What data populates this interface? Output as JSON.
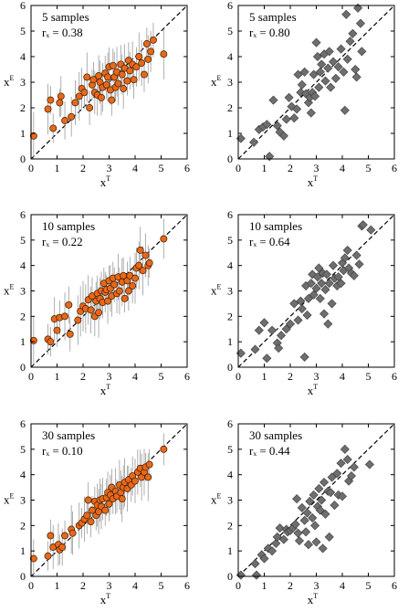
{
  "chart_data": [
    {
      "type": "scatter",
      "marker": "circle",
      "marker_color": "#e8681a",
      "error_bars": true,
      "title": "",
      "annotation_line1": "5 samples",
      "annotation_line2": "rₓ = 0.38",
      "xlabel": "x",
      "xlabel_sup": "T",
      "ylabel": "x",
      "ylabel_sup": "E",
      "xlim": [
        0,
        6
      ],
      "ylim": [
        0,
        6
      ],
      "xticks": [
        "0",
        "1",
        "2",
        "3",
        "4",
        "5",
        "6"
      ],
      "yticks": [
        "0",
        "1",
        "2",
        "3",
        "4",
        "5",
        "6"
      ],
      "reference_line": "y = x (dashed)",
      "points": [
        [
          0.1,
          0.9
        ],
        [
          0.65,
          1.95
        ],
        [
          0.75,
          2.3
        ],
        [
          0.85,
          1.2
        ],
        [
          1.1,
          2.2
        ],
        [
          1.15,
          2.45
        ],
        [
          1.3,
          1.5
        ],
        [
          1.55,
          1.65
        ],
        [
          1.7,
          2.2
        ],
        [
          1.85,
          2.45
        ],
        [
          1.95,
          2.75
        ],
        [
          2.05,
          2.6
        ],
        [
          2.15,
          3.2
        ],
        [
          2.25,
          2.0
        ],
        [
          2.35,
          2.9
        ],
        [
          2.4,
          3.1
        ],
        [
          2.45,
          2.6
        ],
        [
          2.55,
          2.5
        ],
        [
          2.6,
          3.25
        ],
        [
          2.65,
          3.0
        ],
        [
          2.7,
          2.4
        ],
        [
          2.75,
          2.8
        ],
        [
          2.85,
          3.35
        ],
        [
          2.9,
          2.9
        ],
        [
          2.95,
          3.2
        ],
        [
          3.0,
          3.6
        ],
        [
          3.05,
          2.7
        ],
        [
          3.1,
          2.3
        ],
        [
          3.15,
          3.65
        ],
        [
          3.2,
          3.2
        ],
        [
          3.25,
          2.8
        ],
        [
          3.3,
          3.4
        ],
        [
          3.35,
          2.95
        ],
        [
          3.45,
          3.7
        ],
        [
          3.5,
          3.3
        ],
        [
          3.55,
          2.75
        ],
        [
          3.6,
          3.55
        ],
        [
          3.7,
          3.05
        ],
        [
          3.75,
          3.85
        ],
        [
          3.8,
          3.45
        ],
        [
          3.9,
          3.7
        ],
        [
          3.95,
          3.1
        ],
        [
          4.05,
          3.6
        ],
        [
          4.15,
          4.0
        ],
        [
          4.25,
          3.75
        ],
        [
          4.35,
          3.3
        ],
        [
          4.45,
          4.5
        ],
        [
          4.5,
          3.9
        ],
        [
          4.6,
          4.2
        ],
        [
          4.7,
          4.65
        ],
        [
          5.1,
          4.1
        ]
      ]
    },
    {
      "type": "scatter",
      "marker": "diamond",
      "marker_color": "#6e6e6e",
      "error_bars": false,
      "title": "",
      "annotation_line1": "5 samples",
      "annotation_line2": "rₓ = 0.80",
      "xlabel": "x",
      "xlabel_sup": "T",
      "ylabel": "x",
      "ylabel_sup": "E",
      "xlim": [
        0,
        6
      ],
      "ylim": [
        0,
        6
      ],
      "xticks": [
        "0",
        "1",
        "2",
        "3",
        "4",
        "5",
        "6"
      ],
      "yticks": [
        "0",
        "1",
        "2",
        "3",
        "4",
        "5",
        "6"
      ],
      "reference_line": "y = x (dashed)",
      "points": [
        [
          0.1,
          0.8
        ],
        [
          0.6,
          0.65
        ],
        [
          0.8,
          1.15
        ],
        [
          0.95,
          1.25
        ],
        [
          1.1,
          1.35
        ],
        [
          1.2,
          0.1
        ],
        [
          1.35,
          2.3
        ],
        [
          1.5,
          1.3
        ],
        [
          1.6,
          1.05
        ],
        [
          1.75,
          0.9
        ],
        [
          1.85,
          1.55
        ],
        [
          1.95,
          2.4
        ],
        [
          2.05,
          2.05
        ],
        [
          2.15,
          1.6
        ],
        [
          2.25,
          1.95
        ],
        [
          2.3,
          3.3
        ],
        [
          2.4,
          2.6
        ],
        [
          2.45,
          2.9
        ],
        [
          2.55,
          3.4
        ],
        [
          2.6,
          2.55
        ],
        [
          2.7,
          2.2
        ],
        [
          2.75,
          2.4
        ],
        [
          2.8,
          1.8
        ],
        [
          2.85,
          2.6
        ],
        [
          2.9,
          3.3
        ],
        [
          2.95,
          2.45
        ],
        [
          3.0,
          4.55
        ],
        [
          3.05,
          4.0
        ],
        [
          3.1,
          2.8
        ],
        [
          3.15,
          3.4
        ],
        [
          3.2,
          3.7
        ],
        [
          3.3,
          4.1
        ],
        [
          3.35,
          3.05
        ],
        [
          3.45,
          3.55
        ],
        [
          3.5,
          4.2
        ],
        [
          3.55,
          2.8
        ],
        [
          3.65,
          3.8
        ],
        [
          3.75,
          3.15
        ],
        [
          3.85,
          3.6
        ],
        [
          3.95,
          4.3
        ],
        [
          4.05,
          3.4
        ],
        [
          4.1,
          1.9
        ],
        [
          4.15,
          5.65
        ],
        [
          4.2,
          3.9
        ],
        [
          4.3,
          4.6
        ],
        [
          4.4,
          4.9
        ],
        [
          4.5,
          3.5
        ],
        [
          4.55,
          3.2
        ],
        [
          4.6,
          5.9
        ],
        [
          4.7,
          5.3
        ],
        [
          4.75,
          4.2
        ]
      ]
    },
    {
      "type": "scatter",
      "marker": "circle",
      "marker_color": "#e8681a",
      "error_bars": true,
      "title": "",
      "annotation_line1": "10 samples",
      "annotation_line2": "rₓ = 0.22",
      "xlabel": "x",
      "xlabel_sup": "T",
      "ylabel": "x",
      "ylabel_sup": "E",
      "xlim": [
        0,
        6
      ],
      "ylim": [
        0,
        6
      ],
      "xticks": [
        "0",
        "1",
        "2",
        "3",
        "4",
        "5",
        "6"
      ],
      "yticks": [
        "0",
        "1",
        "2",
        "3",
        "4",
        "5",
        "6"
      ],
      "reference_line": "y = x (dashed)",
      "points": [
        [
          0.1,
          1.05
        ],
        [
          0.65,
          1.1
        ],
        [
          0.75,
          1.0
        ],
        [
          0.9,
          1.9
        ],
        [
          1.0,
          1.45
        ],
        [
          1.1,
          1.95
        ],
        [
          1.3,
          2.0
        ],
        [
          1.45,
          2.45
        ],
        [
          1.5,
          1.3
        ],
        [
          1.8,
          1.85
        ],
        [
          1.9,
          2.2
        ],
        [
          2.0,
          2.4
        ],
        [
          2.1,
          2.3
        ],
        [
          2.2,
          2.65
        ],
        [
          2.3,
          2.25
        ],
        [
          2.35,
          2.8
        ],
        [
          2.45,
          2.0
        ],
        [
          2.5,
          2.6
        ],
        [
          2.55,
          2.9
        ],
        [
          2.6,
          2.15
        ],
        [
          2.65,
          2.7
        ],
        [
          2.7,
          3.0
        ],
        [
          2.75,
          2.55
        ],
        [
          2.8,
          3.3
        ],
        [
          2.85,
          2.95
        ],
        [
          2.9,
          3.05
        ],
        [
          2.95,
          2.6
        ],
        [
          3.0,
          3.4
        ],
        [
          3.05,
          3.1
        ],
        [
          3.1,
          2.8
        ],
        [
          3.15,
          3.5
        ],
        [
          3.2,
          3.25
        ],
        [
          3.3,
          2.9
        ],
        [
          3.35,
          3.55
        ],
        [
          3.4,
          3.0
        ],
        [
          3.5,
          3.35
        ],
        [
          3.55,
          3.6
        ],
        [
          3.6,
          2.7
        ],
        [
          3.7,
          3.4
        ],
        [
          3.75,
          3.0
        ],
        [
          3.8,
          3.6
        ],
        [
          3.9,
          3.2
        ],
        [
          4.0,
          3.5
        ],
        [
          4.05,
          3.9
        ],
        [
          4.15,
          4.0
        ],
        [
          4.2,
          4.6
        ],
        [
          4.3,
          3.8
        ],
        [
          4.4,
          4.4
        ],
        [
          4.5,
          4.0
        ],
        [
          4.55,
          4.1
        ],
        [
          5.1,
          5.05
        ]
      ]
    },
    {
      "type": "scatter",
      "marker": "diamond",
      "marker_color": "#6e6e6e",
      "error_bars": false,
      "title": "",
      "annotation_line1": "10 samples",
      "annotation_line2": "rₓ = 0.64",
      "xlabel": "x",
      "xlabel_sup": "T",
      "ylabel": "x",
      "ylabel_sup": "E",
      "xlim": [
        0,
        6
      ],
      "ylim": [
        0,
        6
      ],
      "xticks": [
        "0",
        "1",
        "2",
        "3",
        "4",
        "5",
        "6"
      ],
      "yticks": [
        "0",
        "1",
        "2",
        "3",
        "4",
        "5",
        "6"
      ],
      "reference_line": "y = x (dashed)",
      "points": [
        [
          0.1,
          0.55
        ],
        [
          0.65,
          0.7
        ],
        [
          0.8,
          1.45
        ],
        [
          1.0,
          1.75
        ],
        [
          1.1,
          0.35
        ],
        [
          1.3,
          1.45
        ],
        [
          1.5,
          0.95
        ],
        [
          1.55,
          0.75
        ],
        [
          1.65,
          1.25
        ],
        [
          1.85,
          1.5
        ],
        [
          2.0,
          1.7
        ],
        [
          2.15,
          2.5
        ],
        [
          2.3,
          1.85
        ],
        [
          2.4,
          2.6
        ],
        [
          2.45,
          2.3
        ],
        [
          2.55,
          0.4
        ],
        [
          2.6,
          3.2
        ],
        [
          2.65,
          2.05
        ],
        [
          2.7,
          2.7
        ],
        [
          2.8,
          3.3
        ],
        [
          2.85,
          3.65
        ],
        [
          2.9,
          2.85
        ],
        [
          3.0,
          3.1
        ],
        [
          3.05,
          3.55
        ],
        [
          3.1,
          3.9
        ],
        [
          3.15,
          2.7
        ],
        [
          3.2,
          3.3
        ],
        [
          3.25,
          3.7
        ],
        [
          3.3,
          2.1
        ],
        [
          3.35,
          3.05
        ],
        [
          3.4,
          3.65
        ],
        [
          3.45,
          1.7
        ],
        [
          3.5,
          3.3
        ],
        [
          3.6,
          2.5
        ],
        [
          3.65,
          4.0
        ],
        [
          3.7,
          3.5
        ],
        [
          3.8,
          3.2
        ],
        [
          3.85,
          3.55
        ],
        [
          3.95,
          3.3
        ],
        [
          4.0,
          4.1
        ],
        [
          4.05,
          3.8
        ],
        [
          4.1,
          4.3
        ],
        [
          4.2,
          4.6
        ],
        [
          4.25,
          3.9
        ],
        [
          4.35,
          3.7
        ],
        [
          4.45,
          3.6
        ],
        [
          4.55,
          4.4
        ],
        [
          4.65,
          4.05
        ],
        [
          4.75,
          5.55
        ],
        [
          4.8,
          5.6
        ],
        [
          5.1,
          5.4
        ]
      ]
    },
    {
      "type": "scatter",
      "marker": "circle",
      "marker_color": "#e8681a",
      "error_bars": true,
      "title": "",
      "annotation_line1": "30 samples",
      "annotation_line2": "rₓ = 0.10",
      "xlabel": "x",
      "xlabel_sup": "T",
      "ylabel": "x",
      "ylabel_sup": "E",
      "xlim": [
        0,
        6
      ],
      "ylim": [
        0,
        6
      ],
      "xticks": [
        "0",
        "1",
        "2",
        "3",
        "4",
        "5",
        "6"
      ],
      "yticks": [
        "0",
        "1",
        "2",
        "3",
        "4",
        "5",
        "6"
      ],
      "reference_line": "y = x (dashed)",
      "points": [
        [
          0.1,
          0.7
        ],
        [
          0.65,
          0.8
        ],
        [
          0.75,
          1.6
        ],
        [
          0.85,
          1.15
        ],
        [
          1.05,
          1.25
        ],
        [
          1.1,
          1.05
        ],
        [
          1.2,
          1.15
        ],
        [
          1.3,
          1.6
        ],
        [
          1.55,
          1.85
        ],
        [
          1.6,
          1.7
        ],
        [
          1.85,
          2.0
        ],
        [
          1.95,
          2.1
        ],
        [
          2.05,
          2.25
        ],
        [
          2.15,
          2.4
        ],
        [
          2.2,
          3.0
        ],
        [
          2.3,
          2.15
        ],
        [
          2.35,
          2.6
        ],
        [
          2.45,
          2.95
        ],
        [
          2.5,
          2.4
        ],
        [
          2.55,
          2.8
        ],
        [
          2.6,
          2.55
        ],
        [
          2.65,
          3.0
        ],
        [
          2.7,
          2.75
        ],
        [
          2.75,
          3.05
        ],
        [
          2.85,
          2.6
        ],
        [
          2.9,
          3.1
        ],
        [
          2.95,
          3.3
        ],
        [
          3.0,
          2.85
        ],
        [
          3.05,
          3.2
        ],
        [
          3.1,
          3.5
        ],
        [
          3.15,
          3.05
        ],
        [
          3.25,
          3.35
        ],
        [
          3.3,
          3.15
        ],
        [
          3.4,
          3.6
        ],
        [
          3.45,
          3.3
        ],
        [
          3.5,
          3.05
        ],
        [
          3.55,
          3.5
        ],
        [
          3.6,
          3.7
        ],
        [
          3.7,
          3.45
        ],
        [
          3.75,
          3.8
        ],
        [
          3.85,
          3.6
        ],
        [
          3.9,
          3.95
        ],
        [
          4.0,
          3.75
        ],
        [
          4.1,
          4.1
        ],
        [
          4.2,
          4.25
        ],
        [
          4.25,
          3.9
        ],
        [
          4.35,
          4.1
        ],
        [
          4.4,
          4.3
        ],
        [
          4.5,
          3.9
        ],
        [
          4.55,
          4.4
        ],
        [
          5.1,
          5.0
        ]
      ]
    },
    {
      "type": "scatter",
      "marker": "diamond",
      "marker_color": "#6e6e6e",
      "error_bars": false,
      "title": "",
      "annotation_line1": "30 samples",
      "annotation_line2": "rₓ = 0.44",
      "xlabel": "x",
      "xlabel_sup": "T",
      "ylabel": "x",
      "ylabel_sup": "E",
      "xlim": [
        0,
        6
      ],
      "ylim": [
        0,
        6
      ],
      "xticks": [
        "0",
        "1",
        "2",
        "3",
        "4",
        "5",
        "6"
      ],
      "yticks": [
        "0",
        "1",
        "2",
        "3",
        "4",
        "5",
        "6"
      ],
      "reference_line": "y = x (dashed)",
      "points": [
        [
          0.1,
          0.05
        ],
        [
          0.65,
          0.5
        ],
        [
          0.7,
          0.05
        ],
        [
          0.9,
          0.85
        ],
        [
          1.0,
          0.7
        ],
        [
          1.15,
          1.1
        ],
        [
          1.3,
          1.0
        ],
        [
          1.45,
          1.3
        ],
        [
          1.5,
          1.55
        ],
        [
          1.6,
          1.9
        ],
        [
          1.75,
          1.45
        ],
        [
          1.85,
          1.85
        ],
        [
          1.9,
          1.75
        ],
        [
          2.0,
          1.8
        ],
        [
          2.1,
          1.9
        ],
        [
          2.2,
          2.05
        ],
        [
          2.25,
          3.05
        ],
        [
          2.3,
          1.7
        ],
        [
          2.35,
          1.4
        ],
        [
          2.45,
          2.7
        ],
        [
          2.55,
          2.2
        ],
        [
          2.6,
          1.75
        ],
        [
          2.65,
          2.5
        ],
        [
          2.7,
          1.25
        ],
        [
          2.75,
          2.95
        ],
        [
          2.85,
          2.3
        ],
        [
          2.9,
          3.2
        ],
        [
          2.95,
          2.0
        ],
        [
          3.0,
          1.35
        ],
        [
          3.05,
          2.75
        ],
        [
          3.1,
          3.45
        ],
        [
          3.15,
          2.6
        ],
        [
          3.2,
          3.0
        ],
        [
          3.25,
          1.1
        ],
        [
          3.3,
          3.7
        ],
        [
          3.35,
          2.45
        ],
        [
          3.45,
          3.35
        ],
        [
          3.5,
          1.55
        ],
        [
          3.55,
          3.3
        ],
        [
          3.6,
          3.9
        ],
        [
          3.7,
          2.8
        ],
        [
          3.8,
          4.05
        ],
        [
          3.85,
          3.2
        ],
        [
          3.95,
          4.45
        ],
        [
          4.0,
          3.15
        ],
        [
          4.1,
          5.0
        ],
        [
          4.2,
          4.6
        ],
        [
          4.25,
          3.75
        ],
        [
          4.35,
          3.95
        ],
        [
          4.45,
          4.3
        ],
        [
          5.05,
          4.4
        ]
      ]
    }
  ]
}
